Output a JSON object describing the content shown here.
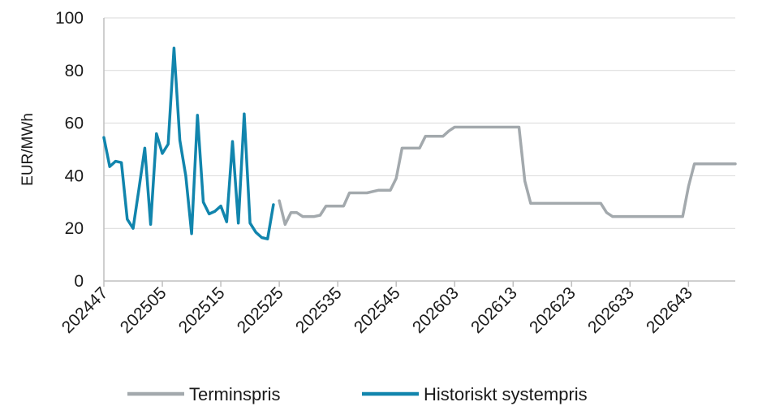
{
  "chart_data": {
    "type": "line",
    "ylabel": "EUR/MWh",
    "xlabel": "",
    "ylim": [
      0,
      100
    ],
    "yticks": [
      0,
      20,
      40,
      60,
      80,
      100
    ],
    "xtick_labels": [
      "202447",
      "202505",
      "202515",
      "202525",
      "202535",
      "202545",
      "202603",
      "202613",
      "202623",
      "202633",
      "202643"
    ],
    "grid": "horizontal",
    "legend_position": "bottom",
    "colors": {
      "Terminspris": "#a3a9ad",
      "Historiskt systempris": "#1185ad"
    },
    "series": [
      {
        "name": "Historiskt systempris",
        "x": [
          0,
          1,
          2,
          3,
          4,
          5,
          6,
          7,
          8,
          9,
          10,
          11,
          12,
          13,
          14,
          15,
          16,
          17,
          18,
          19,
          20,
          21,
          22,
          23,
          24,
          25,
          26,
          27,
          28,
          29,
          30
        ],
        "values": [
          54.5,
          43.5,
          45.5,
          45,
          23.5,
          20,
          35,
          50.5,
          21.5,
          56,
          48.5,
          52,
          88.5,
          53.5,
          40,
          18,
          63,
          30,
          25.5,
          26.5,
          28.5,
          22.5,
          53,
          22,
          63.5,
          22,
          18.5,
          16.5,
          16,
          29,
          null
        ]
      },
      {
        "name": "Terminspris",
        "x": [
          30,
          31,
          32,
          33,
          34,
          35,
          36,
          37,
          38,
          39,
          40,
          41,
          42,
          43,
          44,
          45,
          46,
          47,
          48,
          49,
          50,
          51,
          52,
          53,
          54,
          55,
          56,
          57,
          58,
          59,
          60,
          61,
          62,
          63,
          64,
          65,
          66,
          67,
          68,
          69,
          70,
          71,
          72,
          73,
          74,
          75,
          76,
          77,
          78,
          79,
          80,
          81,
          82,
          83,
          84,
          85,
          86,
          87,
          88,
          89,
          90,
          91,
          92,
          93,
          94,
          95,
          96,
          97,
          98,
          99,
          100,
          101,
          102,
          103,
          104,
          105,
          106,
          107,
          108
        ],
        "values": [
          30.5,
          21.5,
          26,
          26,
          24.5,
          24.5,
          24.5,
          25,
          28.5,
          28.5,
          28.5,
          28.5,
          33.5,
          33.5,
          33.5,
          33.5,
          34,
          34.5,
          34.5,
          34.5,
          39,
          50.5,
          50.5,
          50.5,
          50.5,
          55,
          55,
          55,
          55,
          57,
          58.5,
          58.5,
          58.5,
          58.5,
          58.5,
          58.5,
          58.5,
          58.5,
          58.5,
          58.5,
          58.5,
          58.5,
          38,
          29.5,
          29.5,
          29.5,
          29.5,
          29.5,
          29.5,
          29.5,
          29.5,
          29.5,
          29.5,
          29.5,
          29.5,
          29.5,
          26,
          24.5,
          24.5,
          24.5,
          24.5,
          24.5,
          24.5,
          24.5,
          24.5,
          24.5,
          24.5,
          24.5,
          24.5,
          24.5,
          36,
          44.5,
          44.5,
          44.5,
          44.5,
          44.5,
          44.5,
          44.5,
          44.5
        ]
      }
    ]
  }
}
